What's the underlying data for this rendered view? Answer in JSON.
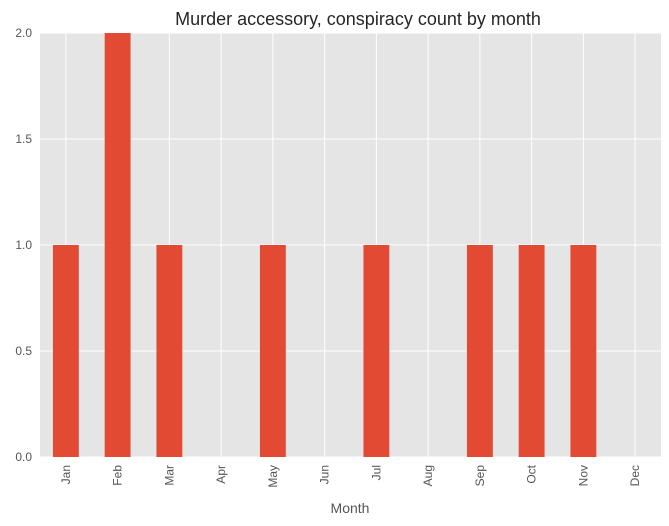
{
  "chart_data": {
    "type": "bar",
    "title": "Murder accessory, conspiracy count by month",
    "xlabel": "Month",
    "ylabel": "",
    "categories": [
      "Jan",
      "Feb",
      "Mar",
      "Apr",
      "May",
      "Jun",
      "Jul",
      "Aug",
      "Sep",
      "Oct",
      "Nov",
      "Dec"
    ],
    "values": [
      1,
      2,
      1,
      0,
      1,
      0,
      1,
      0,
      1,
      1,
      1,
      0
    ],
    "ylim": [
      0.0,
      2.0
    ],
    "yticks": [
      "0.0",
      "0.5",
      "1.0",
      "1.5",
      "2.0"
    ],
    "grid": true,
    "legend": "none",
    "colors": {
      "bar": "#e24a33",
      "plot_background": "#e5e5e5",
      "grid": "#ffffff"
    }
  }
}
